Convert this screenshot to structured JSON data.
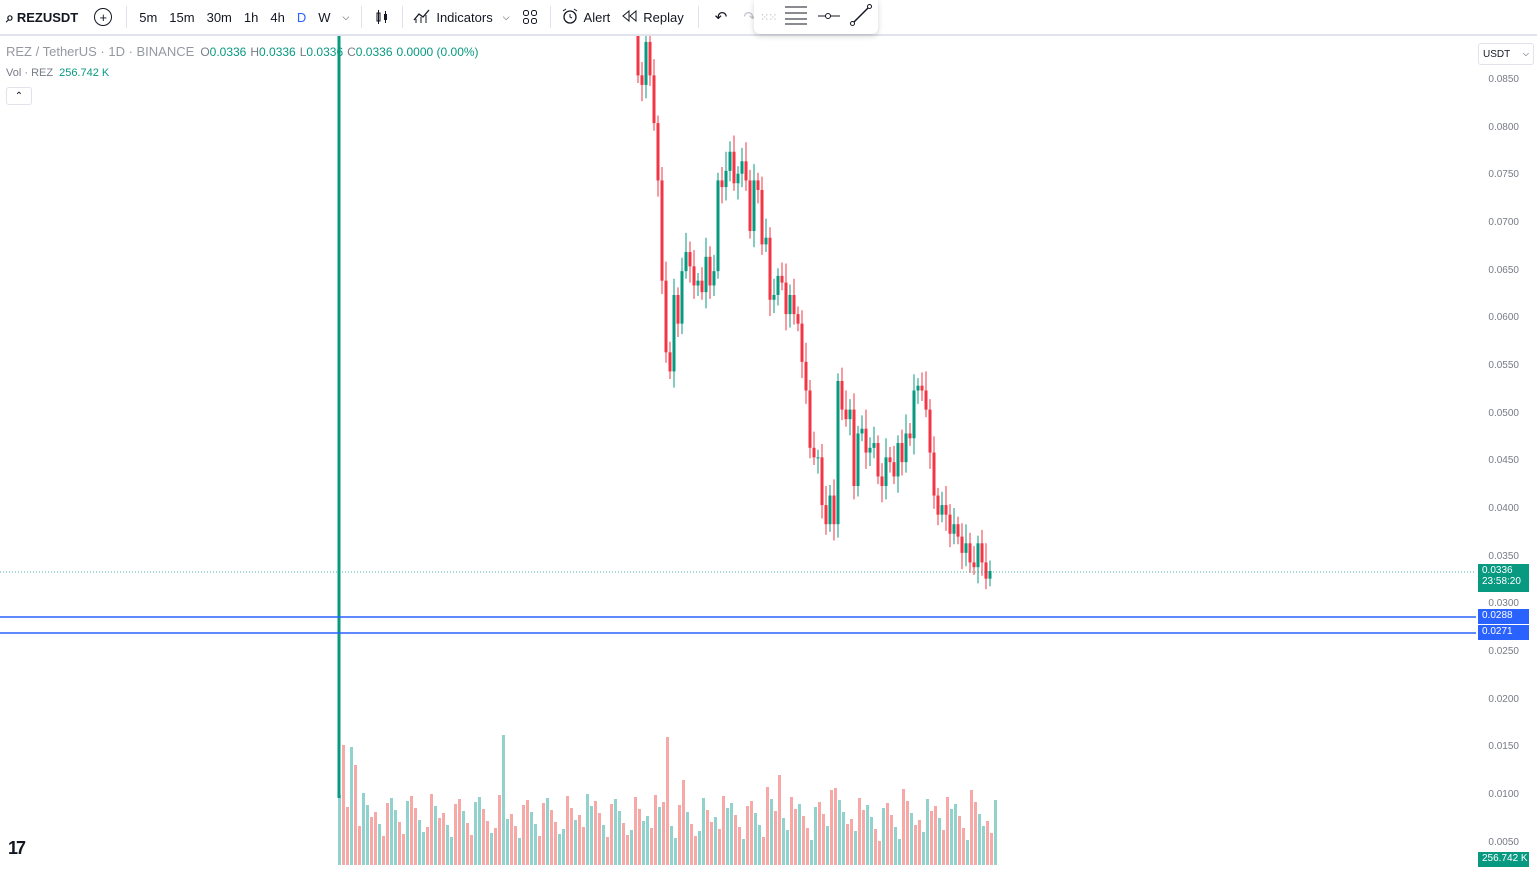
{
  "toolbar": {
    "symbol": "REZUSDT",
    "intervals": [
      "5m",
      "15m",
      "30m",
      "1h",
      "4h",
      "D",
      "W"
    ],
    "active_interval": "D",
    "indicators_label": "Indicators",
    "alert_label": "Alert",
    "replay_label": "Replay"
  },
  "legend": {
    "title": "REZ / TetherUS · 1D · BINANCE",
    "open_key": "O",
    "open": "0.0336",
    "high_key": "H",
    "high": "0.0336",
    "low_key": "L",
    "low": "0.0336",
    "close_key": "C",
    "close": "0.0336",
    "change": "0.0000 (0.00%)",
    "vol_label": "Vol · REZ",
    "vol_value": "256.742 K"
  },
  "price_axis": {
    "currency": "USDT",
    "ticks": [
      "0.0850",
      "0.0800",
      "0.0750",
      "0.0700",
      "0.0650",
      "0.0600",
      "0.0550",
      "0.0500",
      "0.0450",
      "0.0400",
      "0.0350",
      "0.0300",
      "0.0250",
      "0.0200",
      "0.0150",
      "0.0100",
      "0.0050"
    ],
    "last_price": "0.0336",
    "countdown": "23:58:20",
    "line1": "0.0288",
    "line2": "0.0271",
    "volume_label": "256.742 K"
  },
  "colors": {
    "up": "#089981",
    "down": "#f23645",
    "line": "#2962ff",
    "up_vol": "#92d2cc",
    "down_vol": "#f7a9a7"
  },
  "logo_text": "17"
}
